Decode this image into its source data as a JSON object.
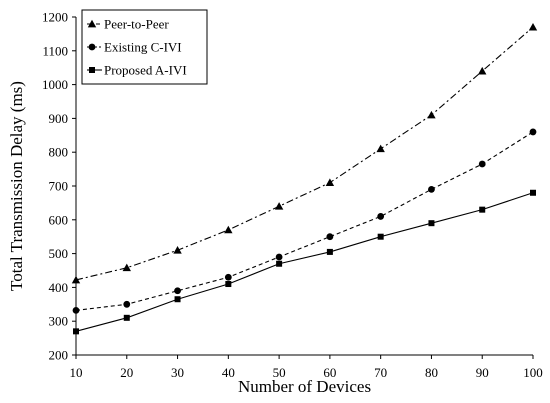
{
  "chart_data": {
    "type": "line",
    "title": "",
    "xlabel": "Number of Devices",
    "ylabel": "Total Transmission Delay (ms)",
    "x": [
      10,
      20,
      30,
      40,
      50,
      60,
      70,
      80,
      90,
      100
    ],
    "xlim": [
      10,
      100
    ],
    "ylim": [
      200,
      1200
    ],
    "xticks": [
      "10",
      "20",
      "30",
      "40",
      "50",
      "60",
      "70",
      "80",
      "90",
      "100"
    ],
    "yticks": [
      "200",
      "300",
      "400",
      "500",
      "600",
      "700",
      "800",
      "900",
      "1000",
      "1100",
      "1200"
    ],
    "grid": false,
    "legend_position": "top-left",
    "series": [
      {
        "name": "Peer-to-Peer",
        "marker": "triangle",
        "line_style": "dash-dot",
        "color": "#000000",
        "values": [
          422,
          458,
          510,
          570,
          640,
          710,
          810,
          910,
          1040,
          1170
        ]
      },
      {
        "name": "Existing C-IVI",
        "marker": "circle",
        "line_style": "dashed",
        "color": "#000000",
        "values": [
          332,
          350,
          390,
          430,
          490,
          550,
          610,
          690,
          765,
          860
        ]
      },
      {
        "name": "Proposed A-IVI",
        "marker": "square",
        "line_style": "solid",
        "color": "#000000",
        "values": [
          270,
          310,
          365,
          410,
          470,
          505,
          550,
          590,
          630,
          680
        ]
      }
    ]
  }
}
